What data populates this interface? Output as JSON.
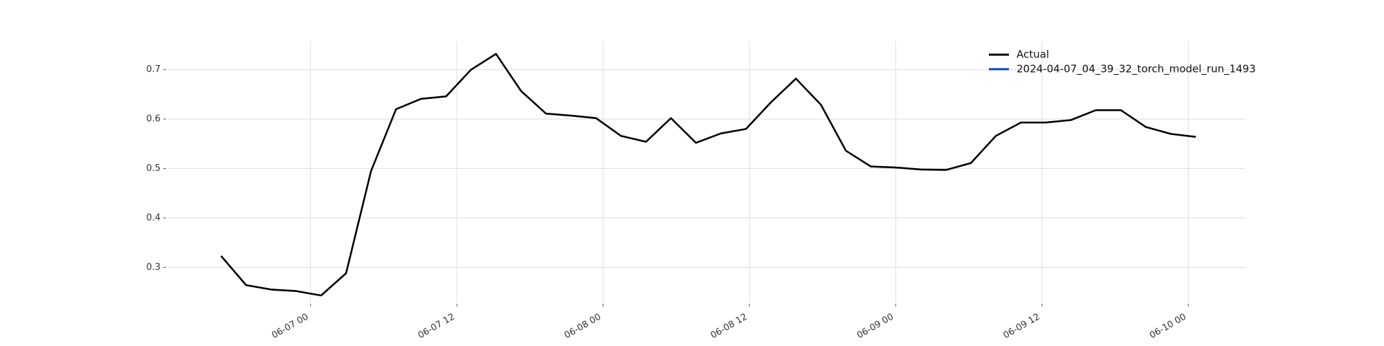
{
  "chart_data": {
    "type": "line",
    "x": [
      "06-06 16:40",
      "06-06 18:43",
      "06-06 20:46",
      "06-06 22:49",
      "06-07 00:52",
      "06-07 02:55",
      "06-07 04:58",
      "06-07 07:01",
      "06-07 09:04",
      "06-07 11:07",
      "06-07 13:10",
      "06-07 15:13",
      "06-07 17:16",
      "06-07 19:19",
      "06-07 21:22",
      "06-07 23:25",
      "06-08 01:28",
      "06-08 03:31",
      "06-08 05:34",
      "06-08 07:37",
      "06-08 09:40",
      "06-08 11:43",
      "06-08 13:46",
      "06-08 15:49",
      "06-08 17:52",
      "06-08 19:55",
      "06-08 21:58",
      "06-09 00:01",
      "06-09 02:04",
      "06-09 04:07",
      "06-09 06:10",
      "06-09 08:13",
      "06-09 10:16",
      "06-09 12:19",
      "06-09 14:22",
      "06-09 16:25",
      "06-09 18:28",
      "06-09 20:31",
      "06-09 22:34",
      "06-10 00:37"
    ],
    "series": [
      {
        "name": "Actual",
        "color": "#000000",
        "values": [
          0.323,
          0.264,
          0.255,
          0.252,
          0.243,
          0.288,
          0.495,
          0.62,
          0.641,
          0.646,
          0.7,
          0.732,
          0.657,
          0.611,
          0.607,
          0.602,
          0.566,
          0.554,
          0.602,
          0.552,
          0.571,
          0.58,
          0.634,
          0.682,
          0.629,
          0.536,
          0.504,
          0.502,
          0.498,
          0.497,
          0.511,
          0.566,
          0.593,
          0.593,
          0.598,
          0.618,
          0.618,
          0.584,
          0.57,
          0.564
        ]
      },
      {
        "name": "2024-04-07_04_39_32_torch_model_run_1493",
        "color": "#0a3fd9",
        "values": [
          null,
          null,
          null,
          null,
          null,
          null,
          null,
          null,
          null,
          null,
          null,
          null,
          null,
          null,
          null,
          null,
          null,
          null,
          null,
          null,
          null,
          null,
          null,
          null,
          null,
          null,
          null,
          null,
          null,
          null,
          null,
          null,
          null,
          null,
          null,
          null,
          null,
          null,
          null,
          null
        ]
      }
    ],
    "xlim": [
      "06-06 12:16",
      "06-10 04:42"
    ],
    "xticks": [
      {
        "value": "06-07 00:00",
        "label": "06-07 00"
      },
      {
        "value": "06-07 12:00",
        "label": "06-07 12"
      },
      {
        "value": "06-08 00:00",
        "label": "06-08 00"
      },
      {
        "value": "06-08 12:00",
        "label": "06-08 12"
      },
      {
        "value": "06-09 00:00",
        "label": "06-09 00"
      },
      {
        "value": "06-09 12:00",
        "label": "06-09 12"
      },
      {
        "value": "06-10 00:00",
        "label": "06-10 00"
      }
    ],
    "ylim": [
      0.229,
      0.757
    ],
    "yticks": [
      0.3,
      0.4,
      0.5,
      0.6,
      0.7
    ],
    "grid": true,
    "legend": "upper right"
  }
}
